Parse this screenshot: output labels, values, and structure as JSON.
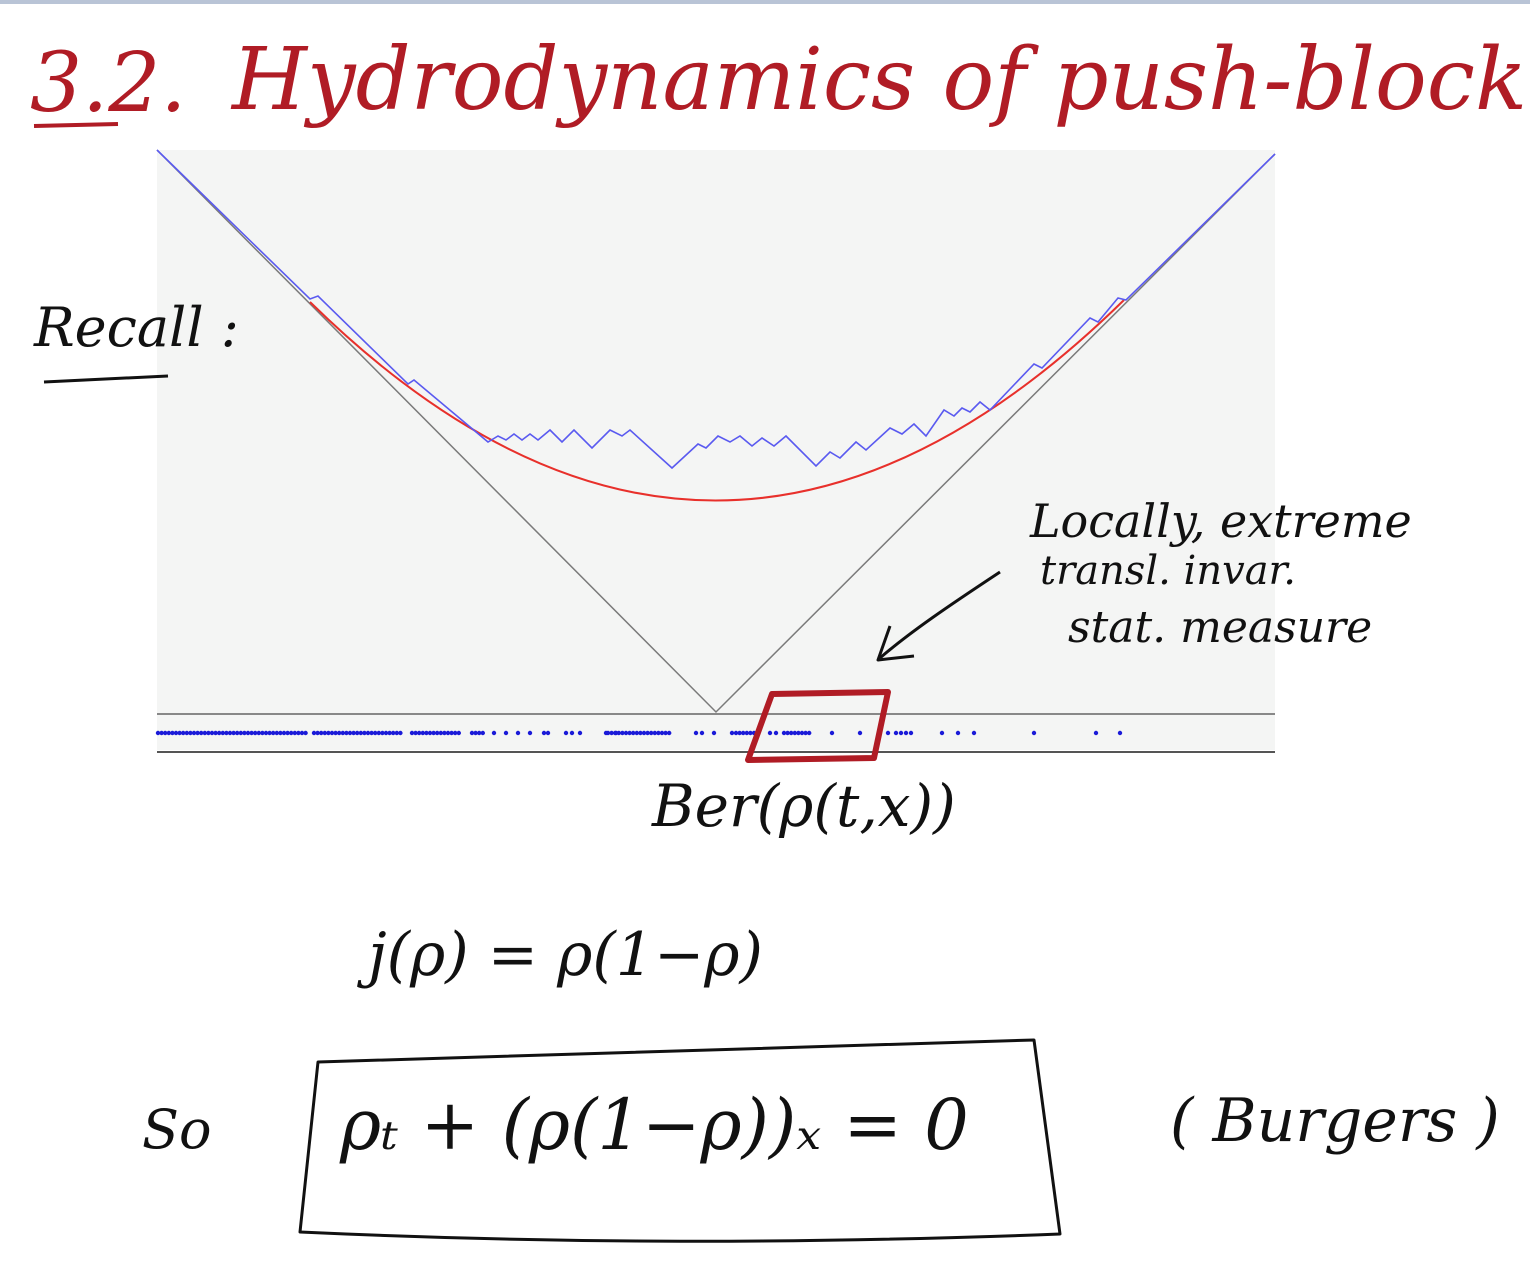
{
  "title": {
    "number": "3.2.",
    "text": "Hydrodynamics of push-block."
  },
  "recall_label": "Recall :",
  "annotation": {
    "line1": "Locally, extreme",
    "line2": "transl. invar.",
    "line3": "stat. measure"
  },
  "bernoulli_label": "Ber(ρ(t,x))",
  "flux_equation": "j(ρ) = ρ(1−ρ)",
  "so_label": "So",
  "burgers_equation": "ρₜ + (ρ(1−ρ))ₓ = 0",
  "burgers_name": "( Burgers )",
  "colors": {
    "title_ink": "#b01c25",
    "ink": "#111111",
    "plot_background": "#f4f5f4",
    "height_function": "#5a5af0",
    "limit_shape": "#e8302b",
    "light_cone": "#7a7a7a",
    "particles": "#1a1ad8",
    "highlight_box": "#b01c25"
  }
}
